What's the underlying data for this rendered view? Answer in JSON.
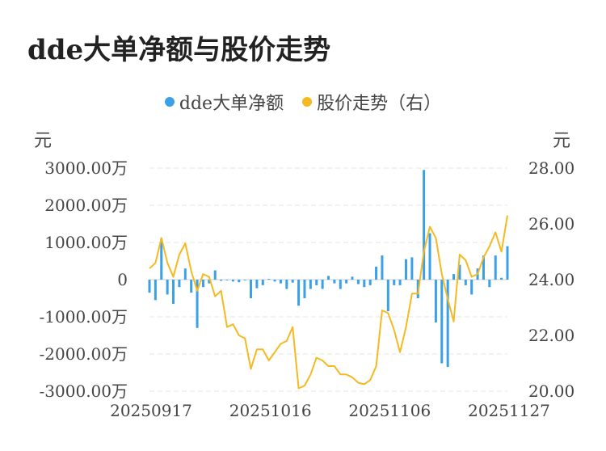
{
  "title": "dde大单净额与股价走势",
  "legend": [
    {
      "label": "dde大单净额",
      "color": "#3aa0e8"
    },
    {
      "label": "股价走势（右）",
      "color": "#f5b921"
    }
  ],
  "units": {
    "left": "元",
    "right": "元"
  },
  "chart_data": {
    "type": "bar+line",
    "y_left_ticks": [
      "3000.00万",
      "2000.00万",
      "1000.00万",
      "0",
      "-1000.00万",
      "-2000.00万",
      "-3000.00万"
    ],
    "y_right_ticks": [
      "28.00",
      "26.00",
      "24.00",
      "22.00",
      "20.00"
    ],
    "x_tick_labels": [
      "20250917",
      "20251016",
      "20251106",
      "20251127"
    ],
    "x_tick_indices": [
      0,
      20,
      40,
      60
    ],
    "y_left_range": [
      -3000,
      3000
    ],
    "y_right_range": [
      20,
      28
    ],
    "grid": true,
    "series": [
      {
        "name": "dde大单净额",
        "axis": "left",
        "type": "bar",
        "color": "#3aa0e8",
        "unit": "万元",
        "values": [
          -350,
          -550,
          1100,
          -400,
          -650,
          -200,
          300,
          -350,
          -1300,
          -200,
          -100,
          250,
          -30,
          0,
          -50,
          -70,
          0,
          -500,
          -230,
          -150,
          20,
          -50,
          -100,
          -250,
          -80,
          -700,
          -500,
          -250,
          -150,
          -250,
          100,
          -100,
          -250,
          -100,
          80,
          -120,
          -200,
          -150,
          350,
          650,
          -850,
          -150,
          -150,
          550,
          600,
          -500,
          2950,
          1250,
          -1150,
          -2250,
          -2350,
          150,
          400,
          -150,
          -400,
          300,
          650,
          -200,
          650,
          50,
          900
        ]
      },
      {
        "name": "股价走势（右）",
        "axis": "right",
        "type": "line",
        "color": "#f5b921",
        "unit": "元",
        "values": [
          24.4,
          24.6,
          25.5,
          24.6,
          24.1,
          24.9,
          25.3,
          24.3,
          23.6,
          24.2,
          24.1,
          23.4,
          23.6,
          22.3,
          22.4,
          22.0,
          21.9,
          20.8,
          21.5,
          21.5,
          21.1,
          21.4,
          21.7,
          21.8,
          22.3,
          20.1,
          20.2,
          20.6,
          21.2,
          21.1,
          20.9,
          20.9,
          20.6,
          20.6,
          20.5,
          20.3,
          20.25,
          20.4,
          20.9,
          22.9,
          22.8,
          22.2,
          21.4,
          22.3,
          23.5,
          23.5,
          25.0,
          25.9,
          25.5,
          24.2,
          23.3,
          22.5,
          24.9,
          24.7,
          24.1,
          24.2,
          24.8,
          25.2,
          25.7,
          25.0,
          26.3
        ]
      }
    ]
  }
}
